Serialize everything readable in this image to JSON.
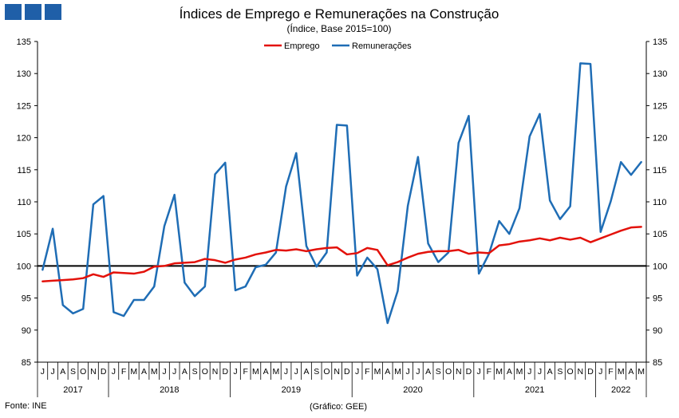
{
  "header": {
    "title": "Índices de Emprego e Remunerações na Construção",
    "subtitle": "(Índice, Base 2015=100)",
    "logo_color": "#1f5fa8"
  },
  "footer": {
    "source": "Fonte: INE",
    "credit": "(Gráfico: GEE)"
  },
  "chart_data": {
    "type": "line",
    "ylim": [
      85,
      135
    ],
    "yticks": [
      85,
      90,
      95,
      100,
      105,
      110,
      115,
      120,
      125,
      130,
      135
    ],
    "reference_line": 100,
    "grid": false,
    "legend_position": "top-center",
    "month_labels": [
      "J",
      "J",
      "A",
      "S",
      "O",
      "N",
      "D",
      "J",
      "F",
      "M",
      "A",
      "M",
      "J",
      "J",
      "A",
      "S",
      "O",
      "N",
      "D",
      "J",
      "F",
      "M",
      "A",
      "M",
      "J",
      "J",
      "A",
      "S",
      "O",
      "N",
      "D",
      "J",
      "F",
      "M",
      "A",
      "M",
      "J",
      "J",
      "A",
      "S",
      "O",
      "N",
      "D",
      "J",
      "F",
      "M",
      "A",
      "M",
      "J",
      "J",
      "A",
      "S",
      "O",
      "N",
      "D",
      "J",
      "F",
      "M",
      "A",
      "M"
    ],
    "years": [
      {
        "label": "2017",
        "start": 0,
        "end": 6
      },
      {
        "label": "2018",
        "start": 7,
        "end": 18
      },
      {
        "label": "2019",
        "start": 19,
        "end": 30
      },
      {
        "label": "2020",
        "start": 31,
        "end": 42
      },
      {
        "label": "2021",
        "start": 43,
        "end": 54
      },
      {
        "label": "2022",
        "start": 55,
        "end": 59
      }
    ],
    "series": [
      {
        "name": "Emprego",
        "color": "#e3120b",
        "values": [
          97.6,
          97.7,
          97.8,
          97.9,
          98.1,
          98.7,
          98.3,
          99.0,
          98.9,
          98.8,
          99.1,
          99.9,
          100.0,
          100.4,
          100.5,
          100.6,
          101.1,
          100.9,
          100.5,
          101.0,
          101.3,
          101.8,
          102.1,
          102.5,
          102.4,
          102.6,
          102.3,
          102.6,
          102.8,
          102.9,
          101.8,
          102.0,
          102.8,
          102.5,
          100.1,
          100.6,
          101.3,
          101.9,
          102.2,
          102.3,
          102.3,
          102.5,
          101.9,
          102.1,
          102.0,
          103.2,
          103.4,
          103.8,
          104.0,
          104.3,
          104.0,
          104.4,
          104.1,
          104.4,
          103.7,
          104.3,
          104.9,
          105.5,
          106.0,
          106.1
        ]
      },
      {
        "name": "Remunerações",
        "color": "#1f6db5",
        "values": [
          99.4,
          105.8,
          93.9,
          92.6,
          93.3,
          109.6,
          110.9,
          92.8,
          92.2,
          94.7,
          94.7,
          96.8,
          106.2,
          111.1,
          97.4,
          95.3,
          96.8,
          114.3,
          116.1,
          96.2,
          96.8,
          99.8,
          100.2,
          102.1,
          112.4,
          117.6,
          103.1,
          99.9,
          102.1,
          122.0,
          121.9,
          98.5,
          101.3,
          99.5,
          91.1,
          96.1,
          109.4,
          117.0,
          103.5,
          100.6,
          102.1,
          119.2,
          123.4,
          98.8,
          101.9,
          107.0,
          105.0,
          109.0,
          120.2,
          123.7,
          110.2,
          107.3,
          109.3,
          131.6,
          131.5,
          105.3,
          110.1,
          116.2,
          114.2,
          116.2
        ]
      }
    ]
  }
}
